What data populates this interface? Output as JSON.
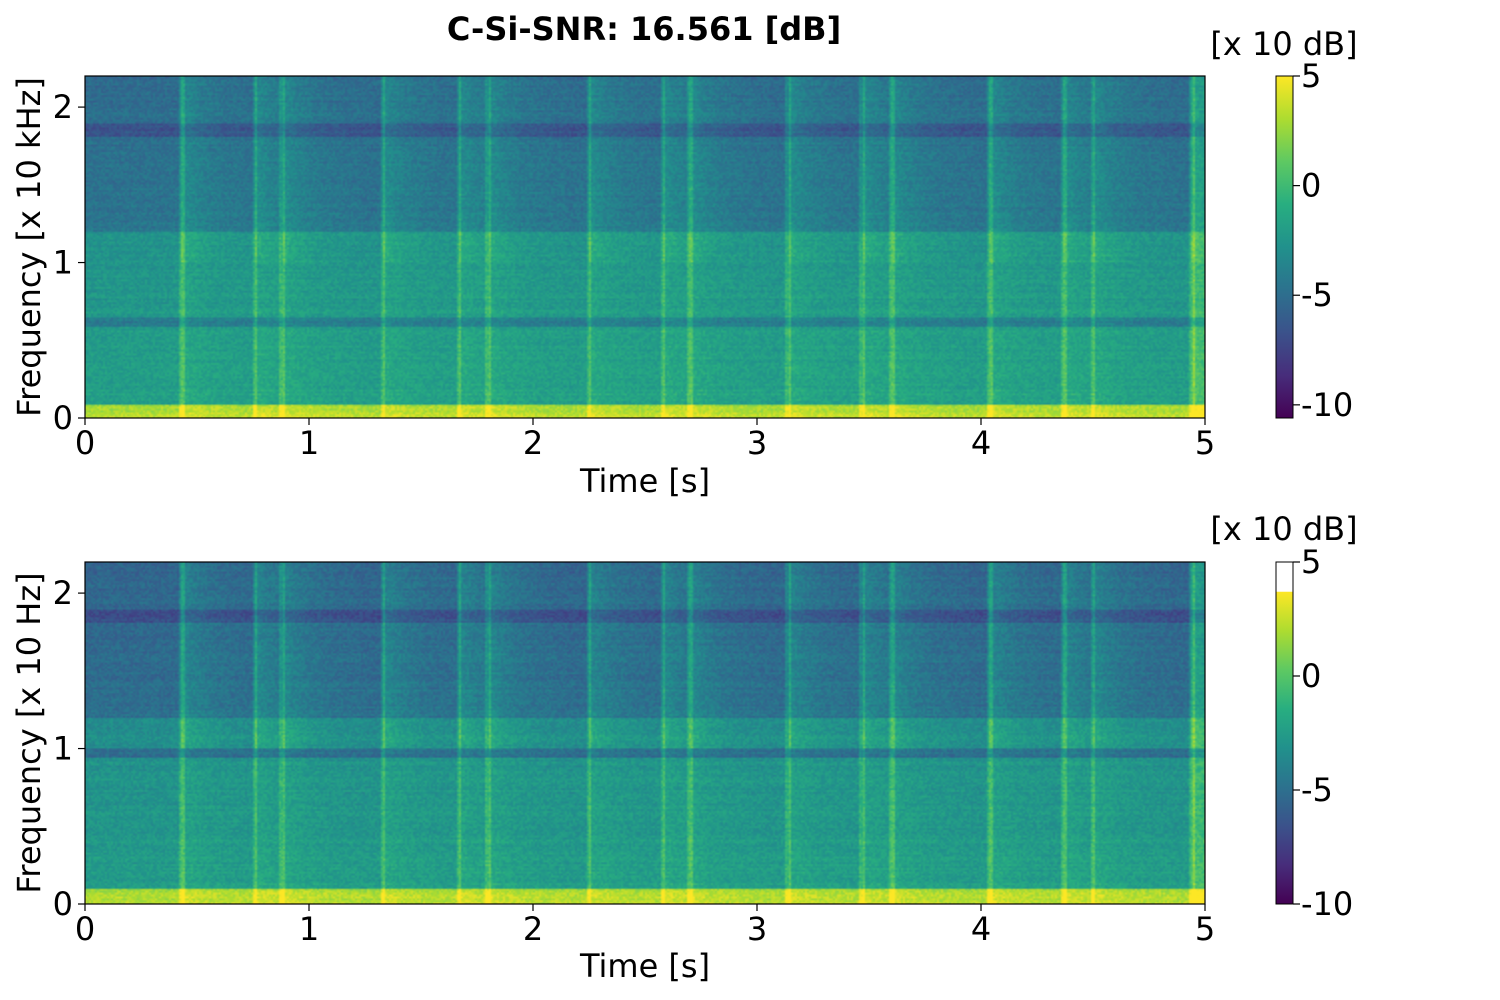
{
  "title": "C-Si-SNR: 16.561 [dB]",
  "colors": {
    "colormap": "viridis",
    "axis": "#000000",
    "background": "#ffffff"
  },
  "chart_data": [
    {
      "type": "heatmap",
      "title": "",
      "xlabel": "Time [s]",
      "ylabel": "Frequency [x 10 kHz]",
      "xlim": [
        0,
        5
      ],
      "ylim": [
        0,
        2.2
      ],
      "x_ticks": [
        0,
        1,
        2,
        3,
        4,
        5
      ],
      "x_tick_labels": [
        "0",
        "1",
        "2",
        "3",
        "4",
        "5"
      ],
      "y_ticks": [
        0,
        1,
        2
      ],
      "y_tick_labels": [
        "0",
        "1",
        "2"
      ],
      "colorbar": {
        "unit": "[x 10 dB]",
        "range": [
          -10.6,
          5
        ],
        "data_max": 5,
        "ticks": [
          5,
          0,
          -5,
          -10
        ],
        "tick_labels": [
          "5",
          "0",
          "-5",
          "-10"
        ]
      },
      "onsets": [
        0.43,
        0.76,
        0.88,
        1.33,
        1.67,
        1.8,
        2.25,
        2.58,
        2.7,
        3.14,
        3.47,
        3.6,
        4.04,
        4.37,
        4.5,
        4.94
      ],
      "dark_band_freq": 0.62,
      "bright_low_band": [
        0,
        0.08
      ],
      "grid": false
    },
    {
      "type": "heatmap",
      "title": "",
      "xlabel": "Time [s]",
      "ylabel": "Frequency [x 10 Hz]",
      "xlim": [
        0,
        5
      ],
      "ylim": [
        0,
        2.2
      ],
      "x_ticks": [
        0,
        1,
        2,
        3,
        4,
        5
      ],
      "x_tick_labels": [
        "0",
        "1",
        "2",
        "3",
        "4",
        "5"
      ],
      "y_ticks": [
        0,
        1,
        2
      ],
      "y_tick_labels": [
        "0",
        "1",
        "2"
      ],
      "colorbar": {
        "unit": "[x 10 dB]",
        "range": [
          -10,
          5
        ],
        "data_max": 3.7,
        "ticks": [
          5,
          0,
          -5,
          -10
        ],
        "tick_labels": [
          "5",
          "0",
          "-5",
          "-10"
        ]
      },
      "onsets": [
        0.43,
        0.76,
        0.88,
        1.33,
        1.67,
        1.8,
        2.25,
        2.58,
        2.7,
        3.14,
        3.47,
        3.6,
        4.04,
        4.37,
        4.5,
        4.94
      ],
      "dark_band_freq": 0.97,
      "bright_low_band": [
        0,
        0.1
      ],
      "grid": false
    }
  ]
}
